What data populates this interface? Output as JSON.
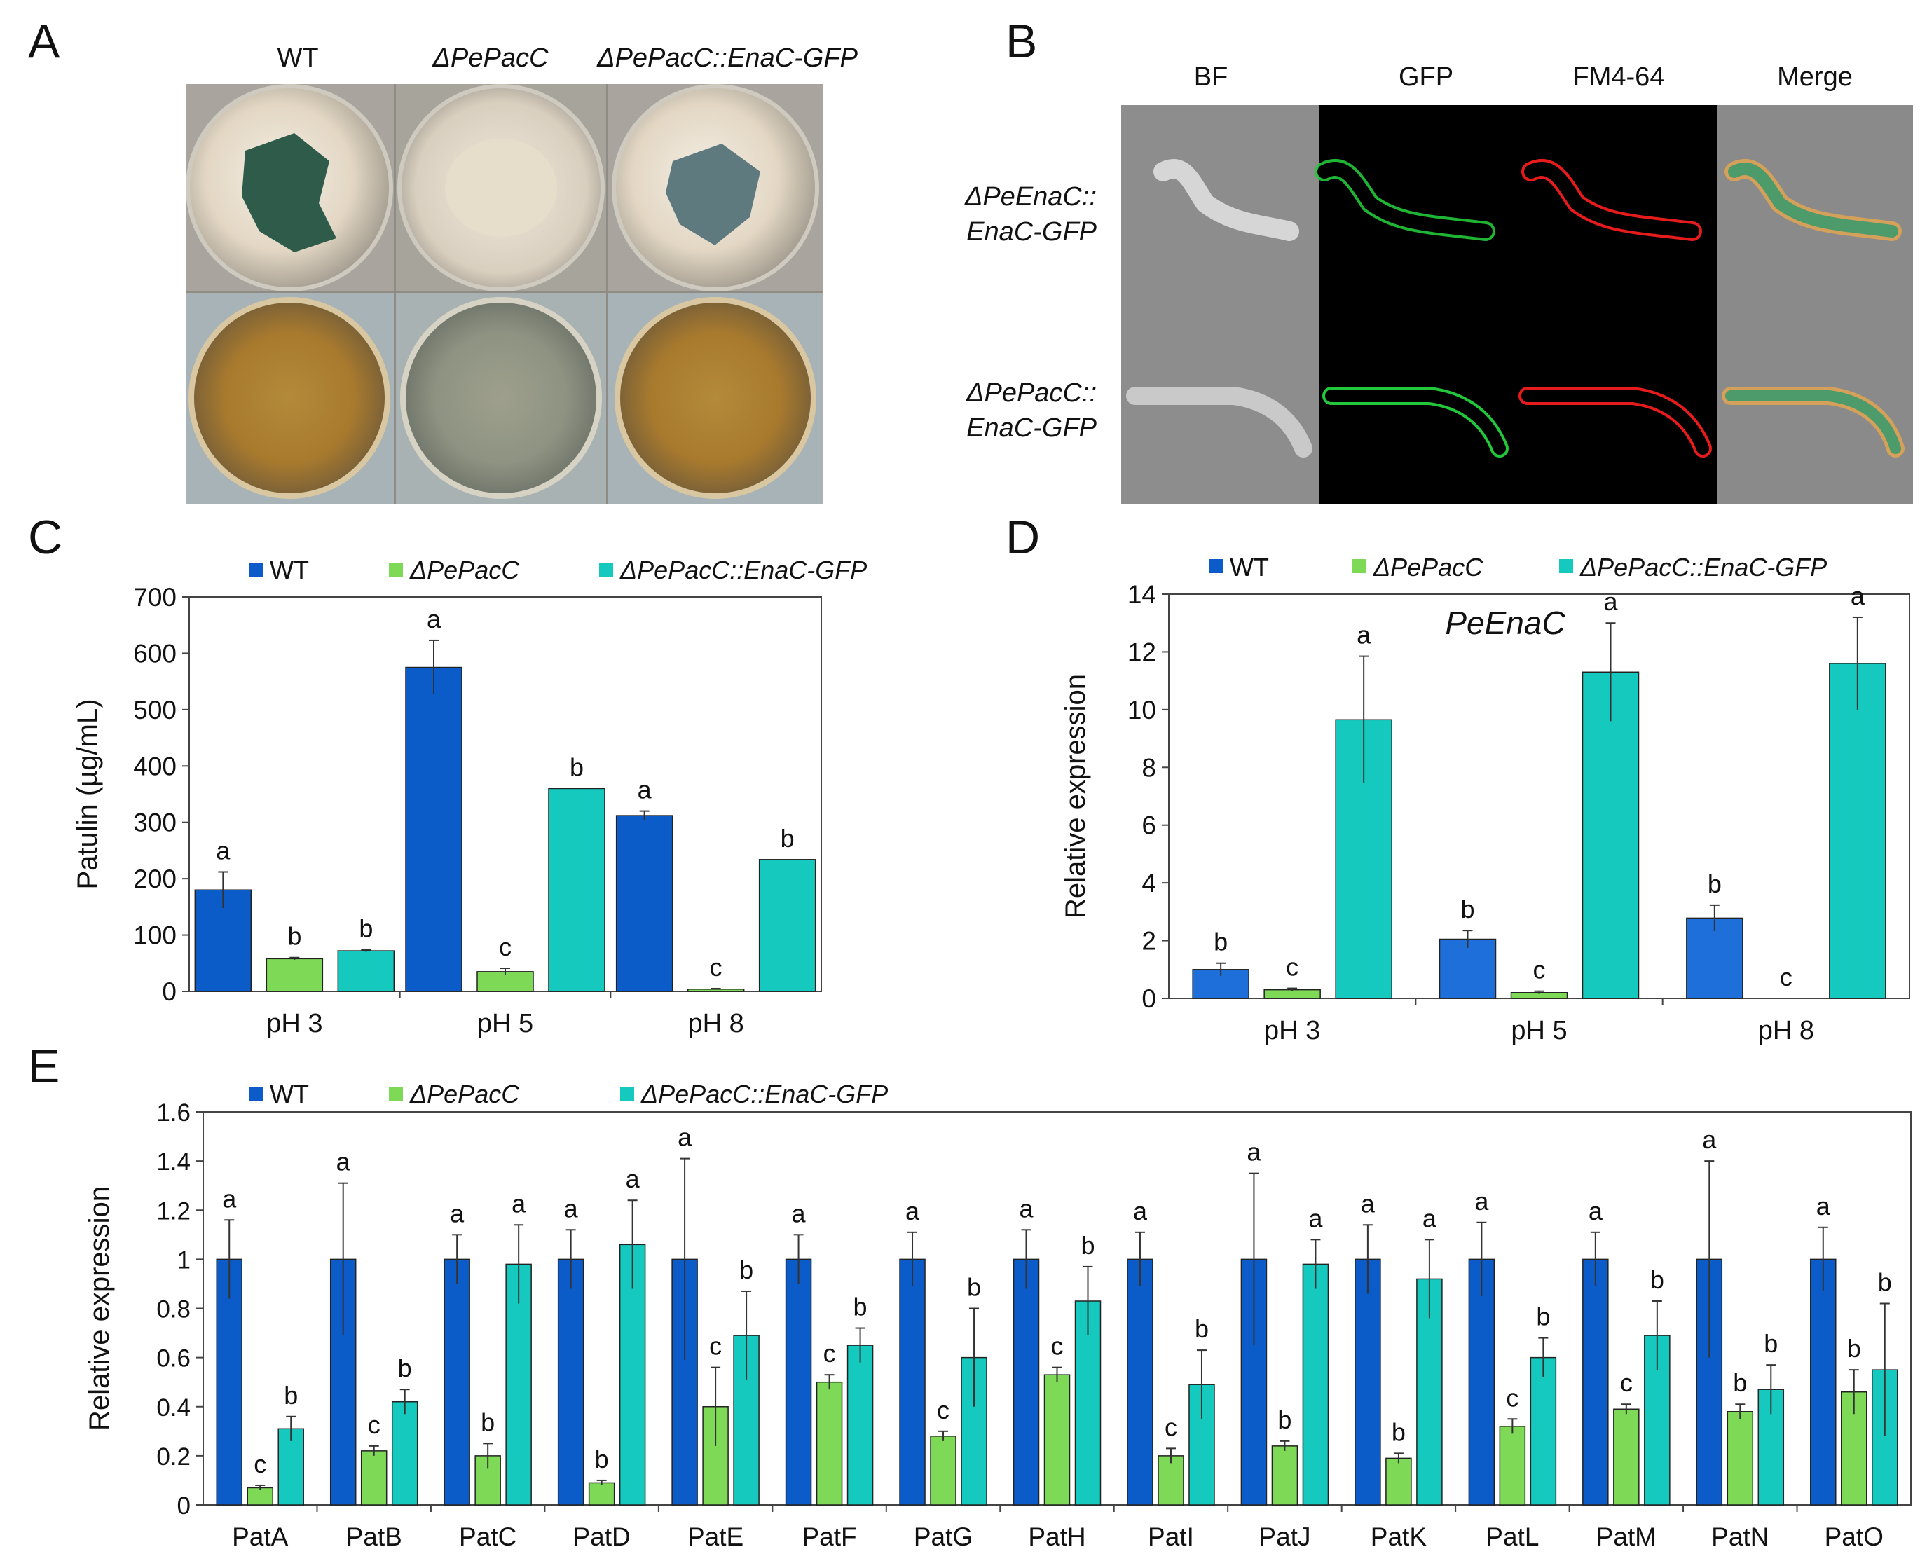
{
  "colors": {
    "wt": "#0B5BC8",
    "wt_d": "#1E6FD9",
    "ko": "#7ED957",
    "comp": "#16C9BE",
    "err": "#333333"
  },
  "legend": {
    "wt": "WT",
    "ko": "ΔPePacC",
    "comp": "ΔPePacC::EnaC-GFP"
  },
  "panel_a": {
    "label": "A",
    "columns": [
      "WT",
      "ΔPePacC",
      "ΔPePacC::EnaC-GFP"
    ]
  },
  "panel_b": {
    "label": "B",
    "columns": [
      "BF",
      "GFP",
      "FM4-64",
      "Merge"
    ],
    "rows": [
      [
        "ΔPeEnaC::",
        "EnaC-GFP"
      ],
      [
        "ΔPePacC::",
        "EnaC-GFP"
      ]
    ]
  },
  "chart_data": [
    {
      "panel": "C",
      "type": "bar",
      "title": "",
      "ylabel": "Patulin (µg/mL)",
      "xlabel": "",
      "ylim": [
        0,
        700
      ],
      "yticks": [
        0,
        100,
        200,
        300,
        400,
        500,
        600,
        700
      ],
      "categories": [
        "pH 3",
        "pH 5",
        "pH 8"
      ],
      "series": [
        {
          "name": "WT",
          "values": [
            180,
            575,
            312
          ],
          "err": [
            32,
            48,
            8
          ],
          "letters": [
            "a",
            "a",
            "a"
          ]
        },
        {
          "name": "ΔPePacC",
          "values": [
            58,
            35,
            4
          ],
          "err": [
            2,
            6,
            1
          ],
          "letters": [
            "b",
            "c",
            "c"
          ]
        },
        {
          "name": "ΔPePacC::EnaC-GFP",
          "values": [
            72,
            360,
            234
          ],
          "err": [
            2,
            0,
            0
          ],
          "letters": [
            "b",
            "b",
            "b"
          ]
        }
      ]
    },
    {
      "panel": "D",
      "type": "bar",
      "title": "PeEnaC",
      "ylabel": "Relative expression",
      "xlabel": "",
      "ylim": [
        0,
        14
      ],
      "yticks": [
        0,
        2,
        4,
        6,
        8,
        10,
        12,
        14
      ],
      "categories": [
        "pH 3",
        "pH 5",
        "pH 8"
      ],
      "series": [
        {
          "name": "WT",
          "values": [
            1.0,
            2.05,
            2.78
          ],
          "err": [
            0.22,
            0.3,
            0.45
          ],
          "letters": [
            "b",
            "b",
            "b"
          ]
        },
        {
          "name": "ΔPePacC",
          "values": [
            0.3,
            0.2,
            0.0
          ],
          "err": [
            0.05,
            0.05,
            0
          ],
          "letters": [
            "c",
            "c",
            "c"
          ]
        },
        {
          "name": "ΔPePacC::EnaC-GFP",
          "values": [
            9.65,
            11.3,
            11.6
          ],
          "err": [
            2.2,
            1.7,
            1.6
          ],
          "letters": [
            "a",
            "a",
            "a"
          ]
        }
      ]
    },
    {
      "panel": "E",
      "type": "bar",
      "title": "",
      "ylabel": "Relative expression",
      "xlabel": "",
      "ylim": [
        0,
        1.6
      ],
      "yticks": [
        0,
        0.2,
        0.4,
        0.6,
        0.8,
        1,
        1.2,
        1.4,
        1.6
      ],
      "categories": [
        "PatA",
        "PatB",
        "PatC",
        "PatD",
        "PatE",
        "PatF",
        "PatG",
        "PatH",
        "PatI",
        "PatJ",
        "PatK",
        "PatL",
        "PatM",
        "PatN",
        "PatO"
      ],
      "series": [
        {
          "name": "WT",
          "values": [
            1,
            1,
            1,
            1,
            1,
            1,
            1,
            1,
            1,
            1,
            1,
            1,
            1,
            1,
            1
          ],
          "err": [
            0.16,
            0.31,
            0.1,
            0.12,
            0.41,
            0.1,
            0.11,
            0.12,
            0.11,
            0.35,
            0.14,
            0.15,
            0.11,
            0.4,
            0.13
          ],
          "letters": [
            "a",
            "a",
            "a",
            "a",
            "a",
            "a",
            "a",
            "a",
            "a",
            "a",
            "a",
            "a",
            "a",
            "a",
            "a"
          ]
        },
        {
          "name": "ΔPePacC",
          "values": [
            0.07,
            0.22,
            0.2,
            0.09,
            0.4,
            0.5,
            0.28,
            0.53,
            0.2,
            0.24,
            0.19,
            0.32,
            0.39,
            0.38,
            0.46
          ],
          "err": [
            0.01,
            0.02,
            0.05,
            0.01,
            0.16,
            0.03,
            0.02,
            0.03,
            0.03,
            0.02,
            0.02,
            0.03,
            0.02,
            0.03,
            0.09
          ],
          "letters": [
            "c",
            "c",
            "b",
            "b",
            "c",
            "c",
            "c",
            "c",
            "c",
            "b",
            "b",
            "c",
            "c",
            "b",
            "b"
          ]
        },
        {
          "name": "ΔPePacC::EnaC-GFP",
          "values": [
            0.31,
            0.42,
            0.98,
            1.06,
            0.69,
            0.65,
            0.6,
            0.83,
            0.49,
            0.98,
            0.92,
            0.6,
            0.69,
            0.47,
            0.55
          ],
          "err": [
            0.05,
            0.05,
            0.16,
            0.18,
            0.18,
            0.07,
            0.2,
            0.14,
            0.14,
            0.1,
            0.16,
            0.08,
            0.14,
            0.1,
            0.27
          ],
          "letters": [
            "b",
            "b",
            "a",
            "a",
            "b",
            "b",
            "b",
            "b",
            "b",
            "a",
            "a",
            "b",
            "b",
            "b",
            "b"
          ]
        }
      ]
    }
  ]
}
